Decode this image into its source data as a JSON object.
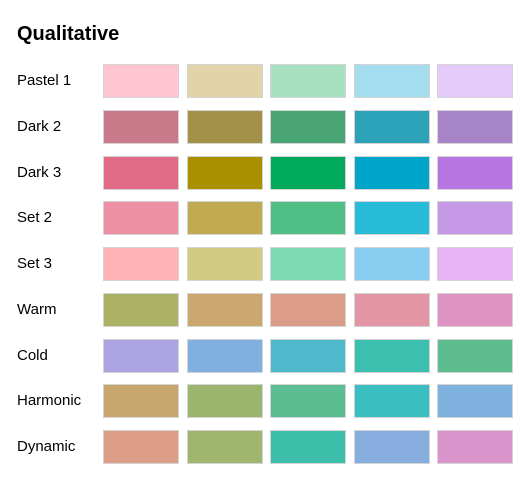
{
  "chart_data": {
    "type": "table",
    "title": "Qualitative",
    "xlabel": "",
    "ylabel": "",
    "palettes": [
      {
        "name": "Pastel 1",
        "colors": [
          "#FFC5D0",
          "#E2D4A8",
          "#A8E1BF",
          "#A4DDEF",
          "#E4CBF9"
        ]
      },
      {
        "name": "Dark 2",
        "colors": [
          "#C87A8A",
          "#A39147",
          "#48A473",
          "#2BA2B8",
          "#A783C8"
        ]
      },
      {
        "name": "Dark 3",
        "colors": [
          "#E16A86",
          "#AA9000",
          "#00AA5A",
          "#00A6CA",
          "#B675E0"
        ]
      },
      {
        "name": "Set 2",
        "colors": [
          "#ED90A4",
          "#C1AB52",
          "#4FBF85",
          "#28BBD7",
          "#C699E7"
        ]
      },
      {
        "name": "Set 3",
        "colors": [
          "#FFB3B5",
          "#D3CA84",
          "#7CDBB4",
          "#88CEF1",
          "#E8B4F6"
        ]
      },
      {
        "name": "Warm",
        "colors": [
          "#ACB264",
          "#CBA770",
          "#DC9D88",
          "#E495A5",
          "#DF93C3"
        ]
      },
      {
        "name": "Cold",
        "colors": [
          "#ACA4E2",
          "#7FB0DF",
          "#4FBACD",
          "#3DBFAF",
          "#5EBD8E"
        ]
      },
      {
        "name": "Harmonic",
        "colors": [
          "#C8A76F",
          "#9BB56F",
          "#5CBD93",
          "#3ABEC0",
          "#7FB1DF"
        ]
      },
      {
        "name": "Dynamic",
        "colors": [
          "#DB9D85",
          "#A0B56E",
          "#3DBEAB",
          "#87AEDF",
          "#DA95CC"
        ]
      }
    ]
  }
}
